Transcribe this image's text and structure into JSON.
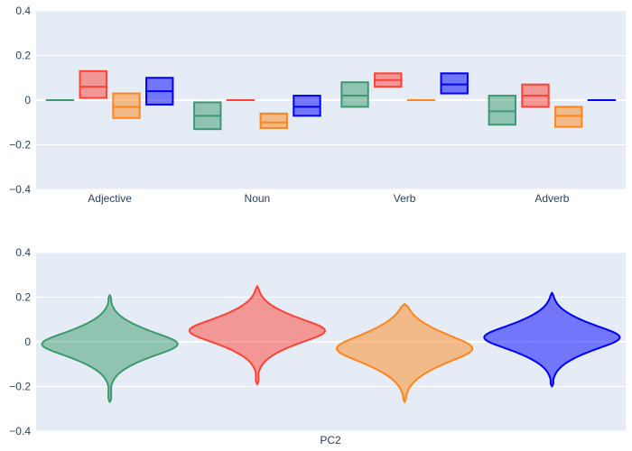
{
  "colors": {
    "background": "#e5ecf6",
    "grid": "#ffffff",
    "text": "#2a3f5f"
  },
  "chart_data": [
    {
      "type": "box",
      "title": "",
      "xlabel": "",
      "ylabel": "",
      "ylim": [
        -0.4,
        0.4
      ],
      "yticks": [
        0.4,
        0.2,
        0,
        -0.2,
        -0.4
      ],
      "ytick_labels": [
        "0.4",
        "0.2",
        "0",
        "−0.2",
        "−0.4"
      ],
      "grid": true,
      "categories": [
        "Adjective",
        "Noun",
        "Verb",
        "Adverb"
      ],
      "series": [
        {
          "color": "#3d9970",
          "boxes": [
            [
              0,
              0,
              0
            ],
            [
              -0.13,
              -0.07,
              -0.01
            ],
            [
              -0.03,
              0.02,
              0.08
            ],
            [
              -0.11,
              -0.05,
              0.02
            ]
          ]
        },
        {
          "color": "#ff4136",
          "boxes": [
            [
              0.01,
              0.06,
              0.13
            ],
            [
              0,
              0,
              0
            ],
            [
              0.06,
              0.09,
              0.12
            ],
            [
              -0.03,
              0.02,
              0.07
            ]
          ]
        },
        {
          "color": "#ff851b",
          "boxes": [
            [
              -0.08,
              -0.03,
              0.03
            ],
            [
              -0.125,
              -0.1,
              -0.06
            ],
            [
              0,
              0,
              0
            ],
            [
              -0.12,
              -0.07,
              -0.03
            ]
          ]
        },
        {
          "color": "#0000ff",
          "boxes": [
            [
              -0.02,
              0.04,
              0.1
            ],
            [
              -0.07,
              -0.03,
              0.02
            ],
            [
              0.03,
              0.07,
              0.12
            ],
            [
              0,
              0,
              0
            ]
          ]
        }
      ]
    },
    {
      "type": "violin",
      "title": "",
      "xlabel": "PC2",
      "ylabel": "",
      "ylim": [
        -0.4,
        0.4
      ],
      "yticks": [
        0.4,
        0.2,
        0,
        -0.2,
        -0.4
      ],
      "ytick_labels": [
        "0.4",
        "0.2",
        "0",
        "−0.2",
        "−0.4"
      ],
      "grid": true,
      "series": [
        {
          "color": "#3d9970",
          "min": -0.27,
          "max": 0.21,
          "center": -0.01,
          "spread": 0.07,
          "halfwidth": 0.92
        },
        {
          "color": "#ff4136",
          "min": -0.19,
          "max": 0.25,
          "center": 0.05,
          "spread": 0.07,
          "halfwidth": 0.92
        },
        {
          "color": "#ff851b",
          "min": -0.27,
          "max": 0.17,
          "center": -0.03,
          "spread": 0.08,
          "halfwidth": 0.92
        },
        {
          "color": "#0000ff",
          "min": -0.2,
          "max": 0.22,
          "center": 0.02,
          "spread": 0.07,
          "halfwidth": 0.92
        }
      ]
    }
  ]
}
